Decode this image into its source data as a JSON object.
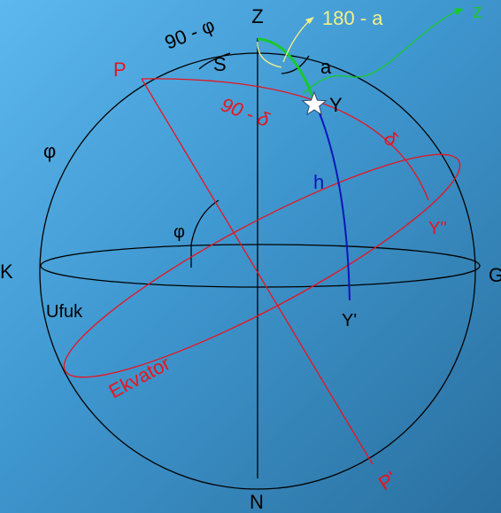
{
  "colors": {
    "background_top": "#5cb8ee",
    "background_bottom": "#2a6f9f",
    "black": "#000000",
    "red": "#e8141e",
    "blue": "#0b16b8",
    "green": "#18c92e",
    "yellow": "#f4f08a",
    "white": "#ffffff"
  },
  "labels": {
    "zenith": "Z",
    "nadir": "N",
    "north_point": "K",
    "south_point": "G",
    "celestial_pole": "P",
    "opposite_pole": "P'",
    "star": "Y",
    "star_horizon_foot": "Y'",
    "star_equator_foot": "Y''",
    "pole_angle": "S",
    "altitude": "h",
    "azimuth": "a",
    "zenith_distance_pole": "90 - φ",
    "polar_distance": "90 - δ",
    "declination": "δ",
    "latitude_left": "φ",
    "latitude_inner": "φ",
    "horizon": "Ufuk",
    "equator": "Ekvator",
    "azimuth_supplement": "180 - a",
    "zenith_distance": "z"
  }
}
